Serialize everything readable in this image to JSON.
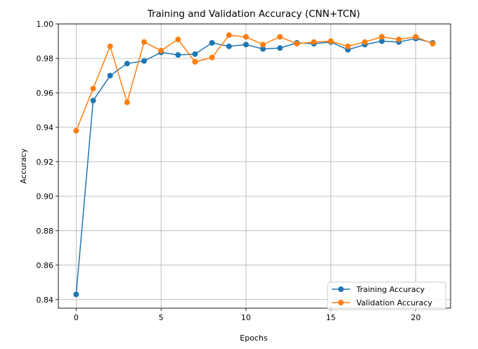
{
  "chart_data": {
    "type": "line",
    "title": "Training and Validation Accuracy (CNN+TCN)",
    "xlabel": "Epochs",
    "ylabel": "Accuracy",
    "xlim": [
      -1.05,
      22.05
    ],
    "ylim": [
      0.835,
      1.0
    ],
    "xticks": [
      0,
      5,
      10,
      15,
      20
    ],
    "yticks": [
      0.84,
      0.86,
      0.88,
      0.9,
      0.92,
      0.94,
      0.96,
      0.98,
      1.0
    ],
    "ytick_labels": [
      "0.84",
      "0.86",
      "0.88",
      "0.90",
      "0.92",
      "0.94",
      "0.96",
      "0.98",
      "1.00"
    ],
    "grid": true,
    "legend_position": "lower-right",
    "x": [
      0,
      1,
      2,
      3,
      4,
      5,
      6,
      7,
      8,
      9,
      10,
      11,
      12,
      13,
      14,
      15,
      16,
      17,
      18,
      19,
      20,
      21
    ],
    "series": [
      {
        "name": "Training Accuracy",
        "color": "#1f77b4",
        "values": [
          0.843,
          0.9555,
          0.97,
          0.977,
          0.9785,
          0.9835,
          0.982,
          0.9825,
          0.989,
          0.987,
          0.988,
          0.9855,
          0.986,
          0.989,
          0.9885,
          0.9895,
          0.985,
          0.988,
          0.99,
          0.9895,
          0.9915,
          0.989
        ]
      },
      {
        "name": "Validation Accuracy",
        "color": "#ff7f0e",
        "values": [
          0.938,
          0.9625,
          0.987,
          0.9545,
          0.9895,
          0.9845,
          0.991,
          0.978,
          0.9805,
          0.9935,
          0.9925,
          0.988,
          0.9925,
          0.9885,
          0.9895,
          0.99,
          0.987,
          0.9895,
          0.9925,
          0.991,
          0.9925,
          0.9885
        ]
      }
    ]
  }
}
